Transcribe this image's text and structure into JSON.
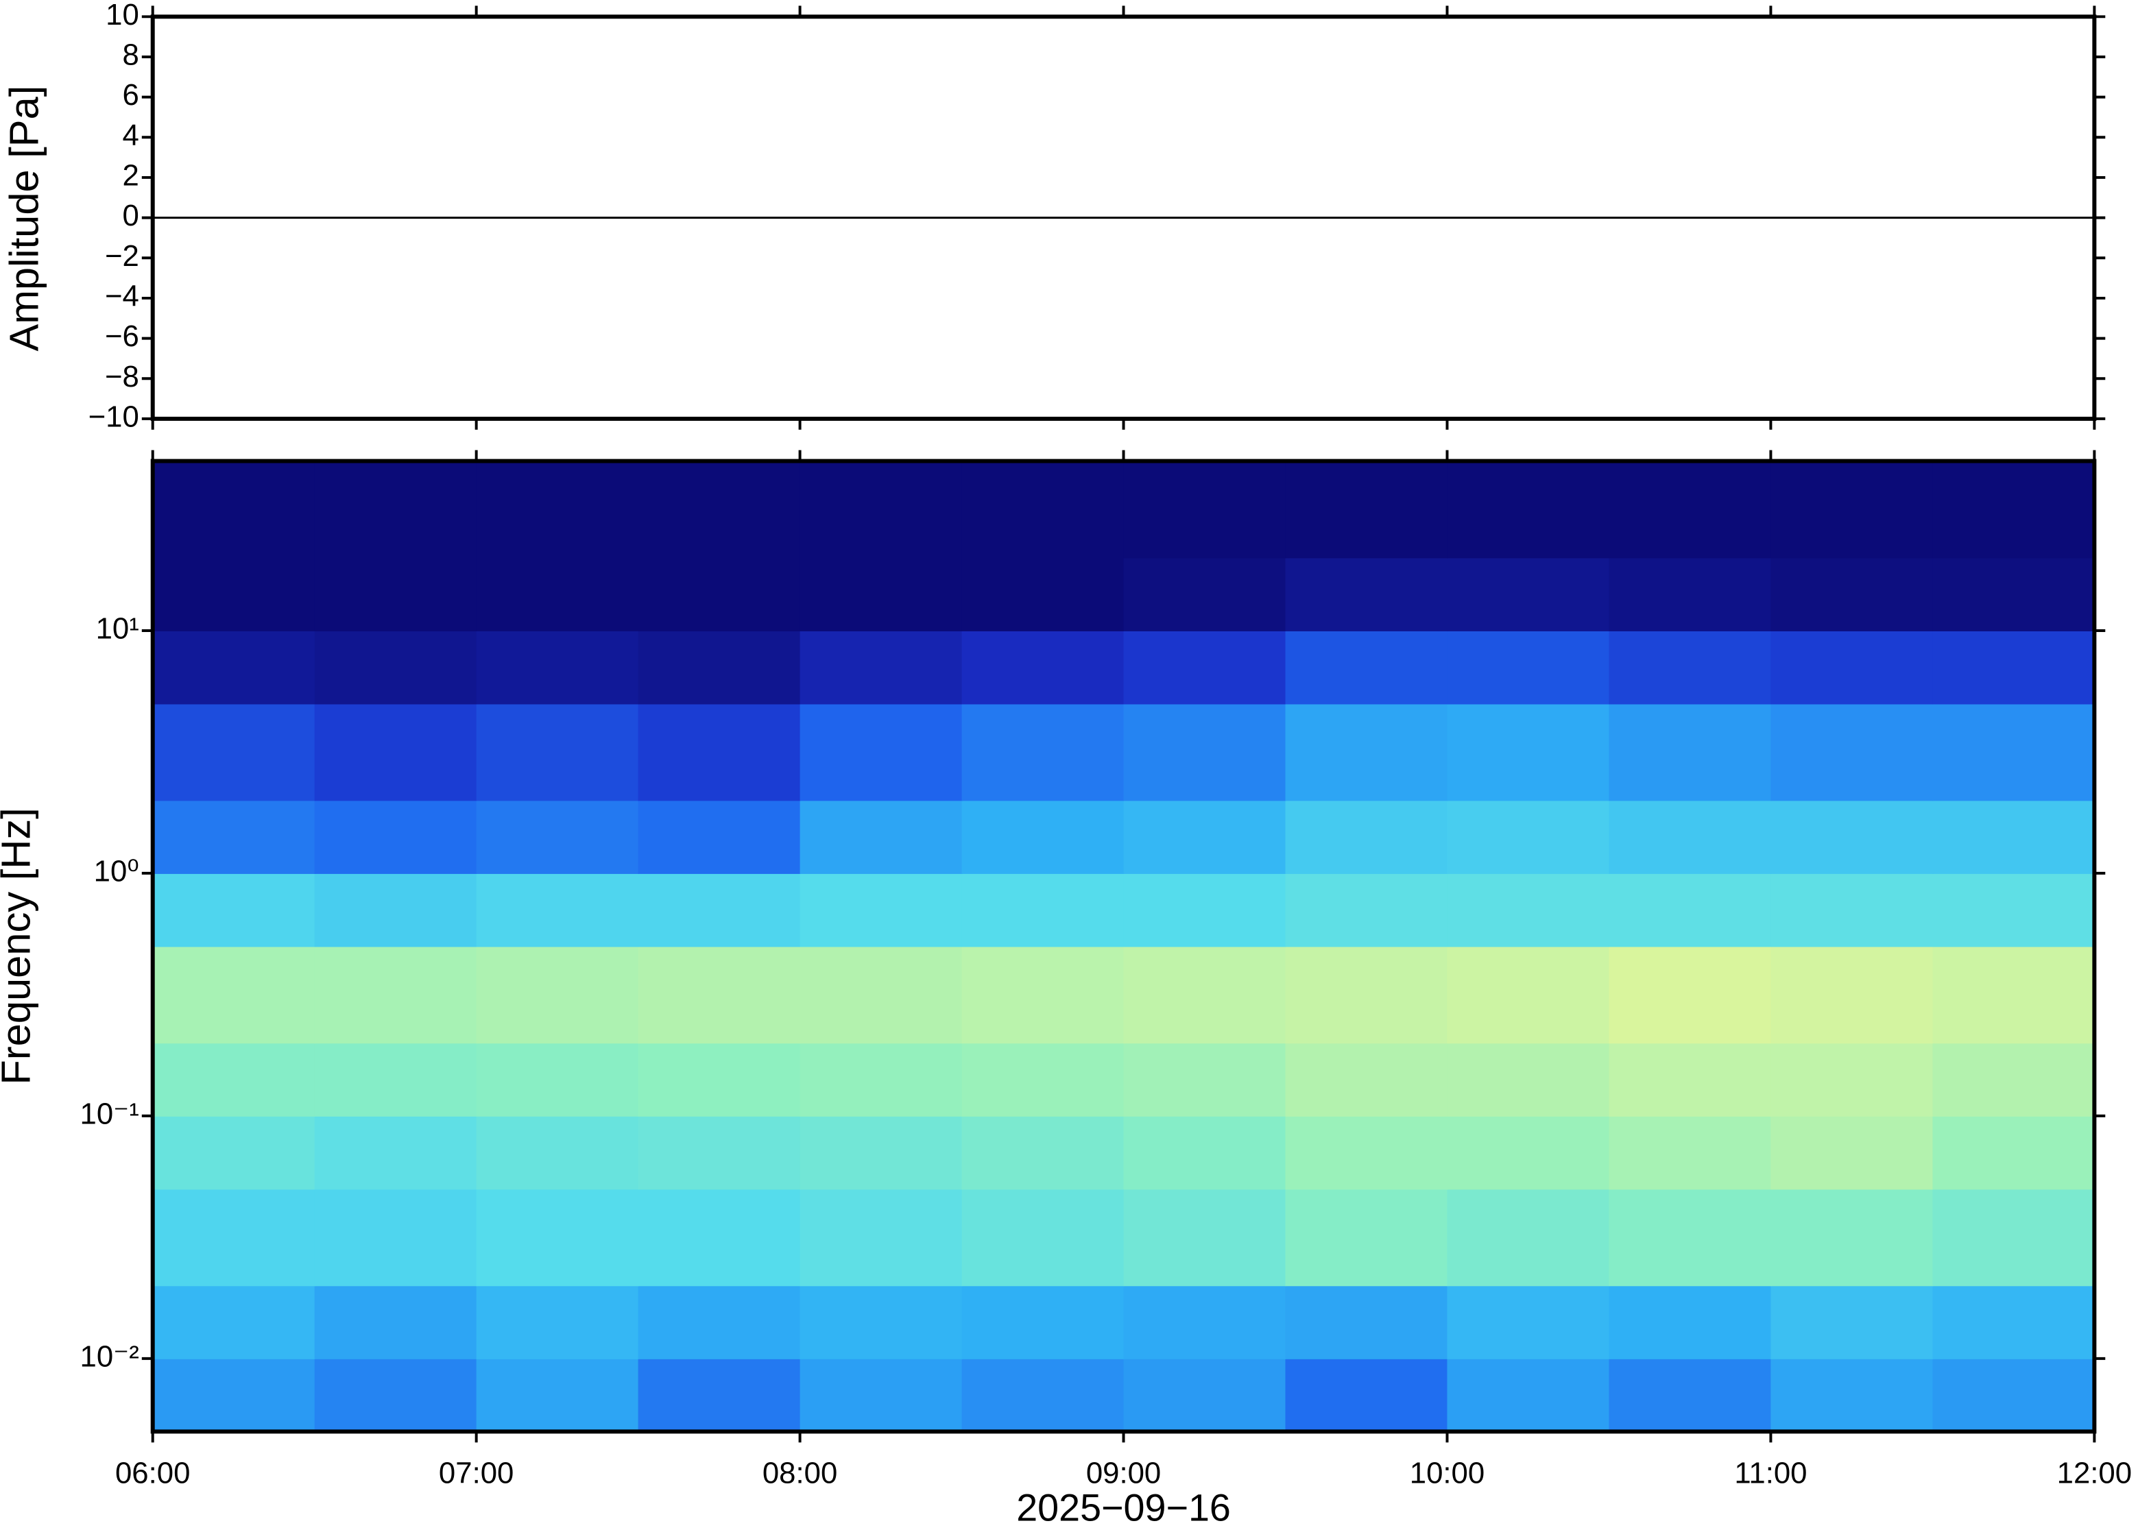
{
  "chart_data": [
    {
      "type": "line",
      "ylabel": "Amplitude [Pa]",
      "x": [
        6,
        12
      ],
      "values": [
        0,
        0
      ],
      "color": "#000000",
      "xlim": [
        6,
        12
      ],
      "ylim": [
        -10,
        10
      ],
      "yticks": [
        10,
        8,
        6,
        4,
        2,
        0,
        {
          "value": -2,
          "label": "−2"
        },
        {
          "value": -4,
          "label": "−4"
        },
        {
          "value": -6,
          "label": "−6"
        },
        {
          "value": -8,
          "label": "−8"
        },
        {
          "value": -10,
          "label": "−10"
        }
      ]
    },
    {
      "type": "heatmap",
      "ylabel": "Frequency [Hz]",
      "xlabel": "2025−09−16",
      "log_y": true,
      "xlim": [
        6,
        12
      ],
      "ylim": [
        0.005,
        50
      ],
      "xticks": [
        {
          "value": 6,
          "label": "06:00"
        },
        {
          "value": 7,
          "label": "07:00"
        },
        {
          "value": 8,
          "label": "08:00"
        },
        {
          "value": 9,
          "label": "09:00"
        },
        {
          "value": 10,
          "label": "10:00"
        },
        {
          "value": 11,
          "label": "11:00"
        },
        {
          "value": 12,
          "label": "12:00"
        }
      ],
      "yticks": [
        {
          "value": 10,
          "label": "10¹"
        },
        {
          "value": 1,
          "label": "10⁰"
        },
        {
          "value": 0.1,
          "label": "10⁻¹"
        },
        {
          "value": 0.01,
          "label": "10⁻²"
        }
      ],
      "x_bins": [
        6,
        6.5,
        7,
        7.5,
        8,
        8.5,
        9,
        9.5,
        10,
        10.5,
        11,
        11.5,
        12
      ],
      "y_bins": [
        0.005,
        0.01,
        0.02,
        0.05,
        0.1,
        0.2,
        0.5,
        1,
        2,
        5,
        10,
        20,
        50
      ],
      "colorscale": [
        [
          0,
          "#0b0b78"
        ],
        [
          0.2,
          "#1a2ec8"
        ],
        [
          0.35,
          "#1f68f0"
        ],
        [
          0.48,
          "#2fb0f5"
        ],
        [
          0.6,
          "#55dcec"
        ],
        [
          0.72,
          "#8ef0c0"
        ],
        [
          0.85,
          "#dff59a"
        ],
        [
          1,
          "#f8c070"
        ]
      ],
      "values": [
        [
          0.44,
          0.4,
          0.46,
          0.38,
          0.45,
          0.42,
          0.44,
          0.36,
          0.45,
          0.4,
          0.46,
          0.44
        ],
        [
          0.5,
          0.46,
          0.5,
          0.47,
          0.49,
          0.48,
          0.47,
          0.46,
          0.5,
          0.48,
          0.52,
          0.5
        ],
        [
          0.58,
          0.58,
          0.6,
          0.6,
          0.62,
          0.64,
          0.66,
          0.7,
          0.68,
          0.7,
          0.7,
          0.68
        ],
        [
          0.64,
          0.62,
          0.64,
          0.65,
          0.66,
          0.68,
          0.7,
          0.74,
          0.74,
          0.76,
          0.78,
          0.74
        ],
        [
          0.7,
          0.7,
          0.71,
          0.72,
          0.73,
          0.74,
          0.75,
          0.78,
          0.78,
          0.8,
          0.8,
          0.78
        ],
        [
          0.76,
          0.76,
          0.77,
          0.78,
          0.78,
          0.79,
          0.8,
          0.81,
          0.82,
          0.84,
          0.83,
          0.82
        ],
        [
          0.58,
          0.56,
          0.58,
          0.58,
          0.6,
          0.6,
          0.6,
          0.62,
          0.62,
          0.62,
          0.62,
          0.62
        ],
        [
          0.38,
          0.36,
          0.38,
          0.36,
          0.46,
          0.48,
          0.5,
          0.55,
          0.56,
          0.54,
          0.54,
          0.54
        ],
        [
          0.28,
          0.24,
          0.28,
          0.24,
          0.34,
          0.38,
          0.4,
          0.46,
          0.47,
          0.44,
          0.42,
          0.42
        ],
        [
          0.08,
          0.06,
          0.08,
          0.06,
          0.14,
          0.18,
          0.22,
          0.3,
          0.3,
          0.26,
          0.24,
          0.24
        ],
        [
          0,
          0,
          0,
          0,
          0,
          0,
          0.02,
          0.06,
          0.06,
          0.04,
          0.02,
          0.02
        ],
        [
          0,
          0,
          0,
          0,
          0,
          0,
          0,
          0,
          0,
          0,
          0,
          0
        ]
      ]
    }
  ]
}
